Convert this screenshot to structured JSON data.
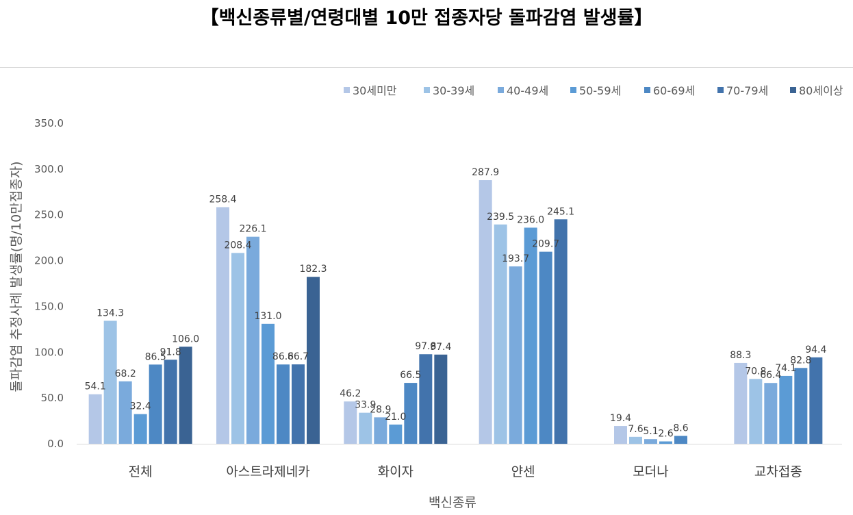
{
  "chart_data": {
    "type": "bar",
    "title": "【백신종류별/연령대별 10만 접종자당 돌파감염 발생률】",
    "xlabel": "백신종류",
    "ylabel": "돌파감염 추정사례 발생률(명/10만접종자)",
    "ylim": [
      0,
      350
    ],
    "yticks": [
      "0.0",
      "50.0",
      "100.0",
      "150.0",
      "200.0",
      "250.0",
      "300.0",
      "350.0"
    ],
    "legend_position": "top-right",
    "categories": [
      "전체",
      "아스트라제네카",
      "화이자",
      "얀센",
      "모더나",
      "교차접종"
    ],
    "series": [
      {
        "name": "30세미만",
        "color": "#b4c7e7",
        "values": [
          54.1,
          258.4,
          46.2,
          287.9,
          19.4,
          88.3
        ],
        "labels": [
          "54.1",
          "258.4",
          "46.2",
          "287.9",
          "19.4",
          "88.3"
        ]
      },
      {
        "name": "30-39세",
        "color": "#9dc3e6",
        "values": [
          134.3,
          208.4,
          33.9,
          239.5,
          7.6,
          70.8
        ],
        "labels": [
          "134.3",
          "208.4",
          "33.9",
          "239.5",
          "7.6",
          "70.8"
        ]
      },
      {
        "name": "40-49세",
        "color": "#7aaadc",
        "values": [
          68.2,
          226.1,
          28.9,
          193.7,
          5.1,
          66.4
        ],
        "labels": [
          "68.2",
          "226.1",
          "28.9",
          "193.7",
          "5.1",
          "66.4"
        ]
      },
      {
        "name": "50-59세",
        "color": "#5b9bd5",
        "values": [
          32.4,
          131.0,
          21.0,
          236.0,
          2.6,
          74.1
        ],
        "labels": [
          "32.4",
          "131.0",
          "21.0",
          "236.0",
          "2.6",
          "74.1"
        ]
      },
      {
        "name": "60-69세",
        "color": "#4d88c4",
        "values": [
          86.5,
          86.6,
          66.5,
          209.7,
          8.6,
          82.8
        ],
        "labels": [
          "86.5",
          "86.6",
          "66.5",
          "209.7",
          "8.6",
          "82.8"
        ]
      },
      {
        "name": "70-79세",
        "color": "#4273ac",
        "values": [
          91.8,
          86.7,
          97.8,
          245.1,
          null,
          94.4
        ],
        "labels": [
          "91.8",
          "86.7",
          "97.8",
          "245.1",
          "",
          "94.4"
        ]
      },
      {
        "name": "80세이상",
        "color": "#3a6393",
        "values": [
          106.0,
          182.3,
          97.4,
          null,
          null,
          null
        ],
        "labels": [
          "106.0",
          "182.3",
          "97.4",
          "",
          "",
          ""
        ]
      }
    ]
  }
}
